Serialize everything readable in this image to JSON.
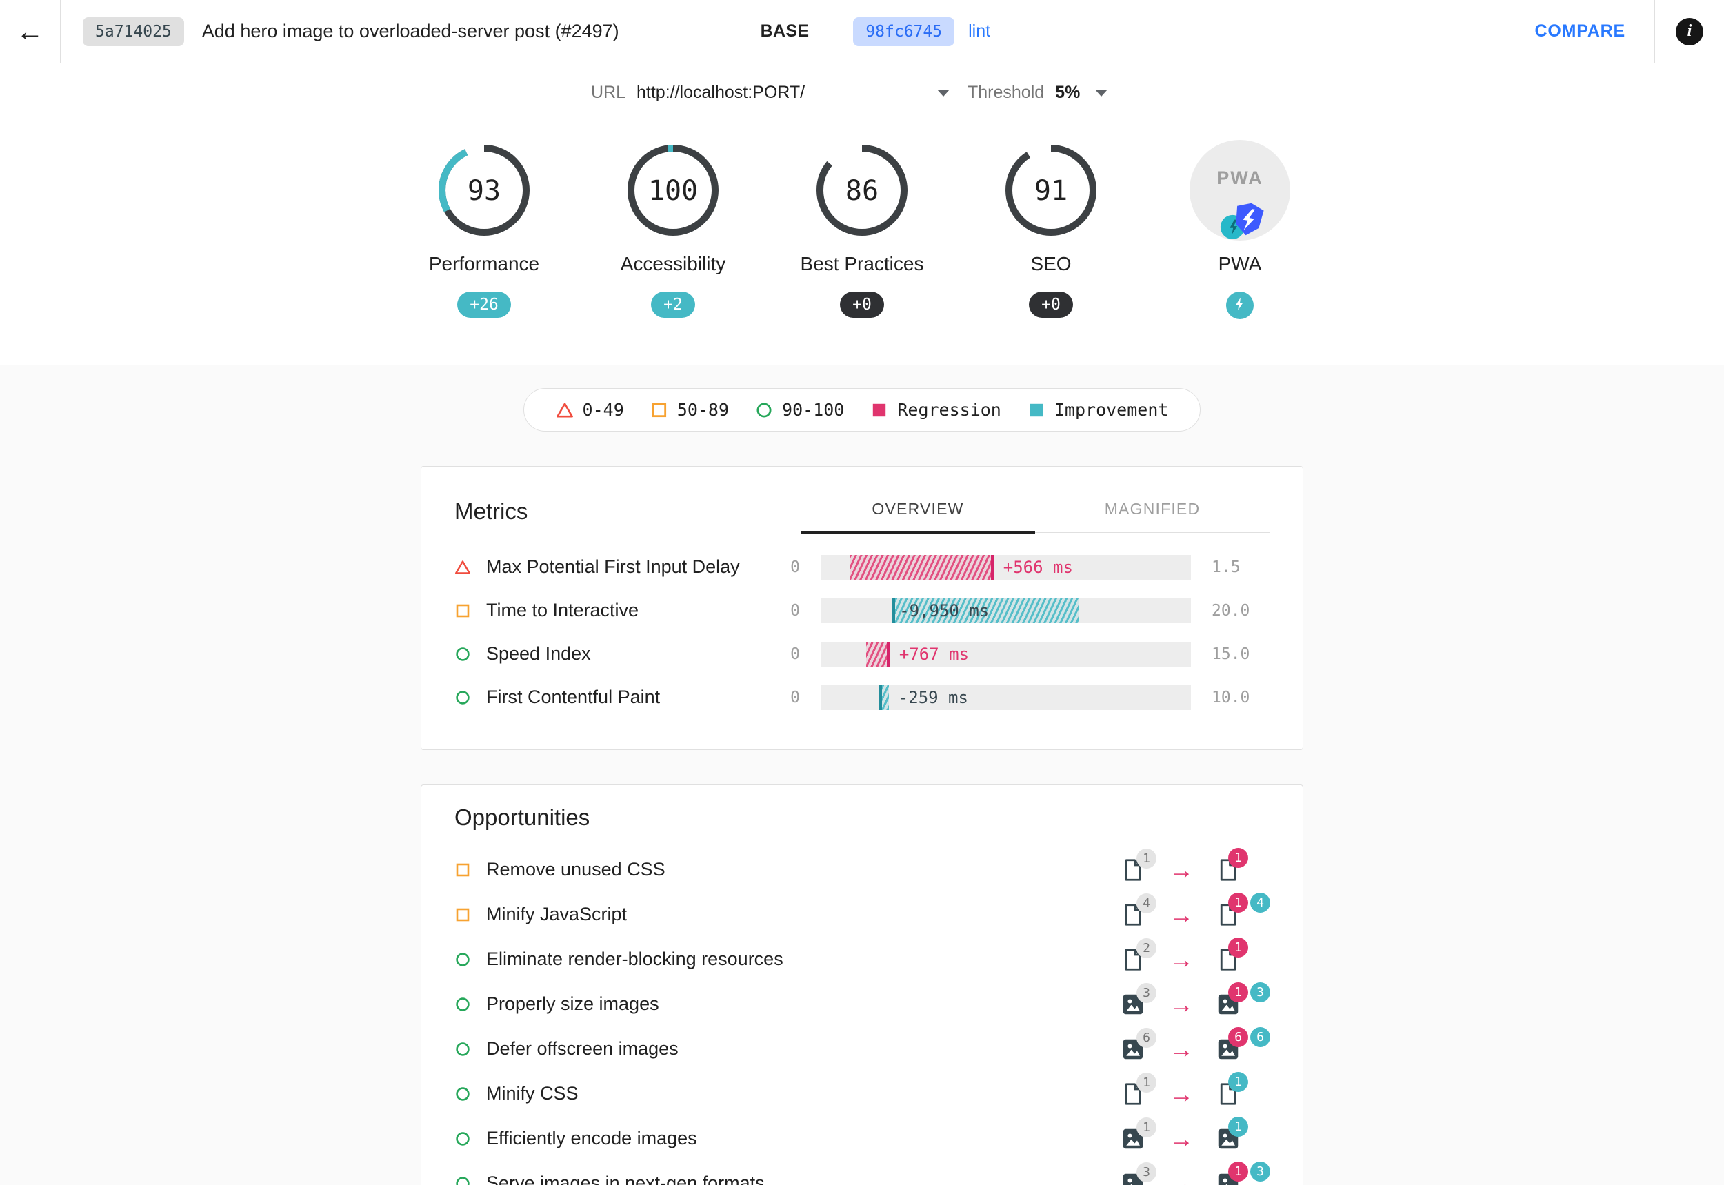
{
  "colors": {
    "teal": "#45b9c5",
    "pink": "#e0356e",
    "orange": "#f7a231",
    "green": "#26a75a",
    "red": "#f04c3e",
    "blue": "#2979ff",
    "ring_dark": "#3c4043"
  },
  "header": {
    "base_hash": "5a714025",
    "title": "Add hero image to overloaded-server post (#2497)",
    "base_label": "BASE",
    "compare_hash": "98fc6745",
    "compare_branch": "lint",
    "compare_label": "COMPARE",
    "back_arrow": "←",
    "info_glyph": "i"
  },
  "controls": {
    "url_label": "URL",
    "url_value": "http://localhost:PORT/",
    "threshold_label": "Threshold",
    "threshold_value": "5%"
  },
  "gauges": [
    {
      "name": "Performance",
      "score": 93,
      "delta": 26,
      "badge": "+26",
      "badge_type": "improvement"
    },
    {
      "name": "Accessibility",
      "score": 100,
      "delta": 2,
      "badge": "+2",
      "badge_type": "improvement"
    },
    {
      "name": "Best Practices",
      "score": 86,
      "delta": 0,
      "badge": "+0",
      "badge_type": "neutral"
    },
    {
      "name": "SEO",
      "score": 91,
      "delta": 0,
      "badge": "+0",
      "badge_type": "neutral"
    },
    {
      "name": "PWA",
      "type": "pwa"
    }
  ],
  "legend": [
    {
      "icon": "triangle",
      "label": "0-49"
    },
    {
      "icon": "square-orange",
      "label": "50-89"
    },
    {
      "icon": "circle-green",
      "label": "90-100"
    },
    {
      "icon": "square-pink",
      "label": "Regression"
    },
    {
      "icon": "square-teal",
      "label": "Improvement"
    }
  ],
  "metrics": {
    "title": "Metrics",
    "tabs": [
      {
        "label": "OVERVIEW",
        "active": true
      },
      {
        "label": "MAGNIFIED",
        "active": false
      }
    ],
    "rows": [
      {
        "icon": "triangle",
        "label": "Max Potential First Input Delay",
        "min": "0",
        "max": "1.5",
        "seg_start_pct": 7.8,
        "seg_width_pct": 38.9,
        "delta_label": "+566 ms",
        "direction": "regression",
        "label_inside": false
      },
      {
        "icon": "square-orange",
        "label": "Time to Interactive",
        "min": "0",
        "max": "20.0",
        "seg_start_pct": 19.4,
        "seg_width_pct": 50.3,
        "delta_label": "-9,950 ms",
        "direction": "improvement",
        "label_inside": true
      },
      {
        "icon": "circle-green",
        "label": "Speed Index",
        "min": "0",
        "max": "15.0",
        "seg_start_pct": 12.3,
        "seg_width_pct": 6.3,
        "delta_label": "+767 ms",
        "direction": "regression",
        "label_inside": false
      },
      {
        "icon": "circle-green",
        "label": "First Contentful Paint",
        "min": "0",
        "max": "10.0",
        "seg_start_pct": 15.8,
        "seg_width_pct": 2.6,
        "delta_label": "-259 ms",
        "direction": "improvement",
        "label_inside": false
      }
    ]
  },
  "opportunities": {
    "title": "Opportunities",
    "rows": [
      {
        "icon": "square-orange",
        "label": "Remove unused CSS",
        "file_icon": "doc",
        "base_count": "1",
        "badges": [
          {
            "value": "1",
            "type": "regression"
          }
        ]
      },
      {
        "icon": "square-orange",
        "label": "Minify JavaScript",
        "file_icon": "doc",
        "base_count": "4",
        "badges": [
          {
            "value": "1",
            "type": "regression"
          },
          {
            "value": "4",
            "type": "improvement"
          }
        ]
      },
      {
        "icon": "circle-green",
        "label": "Eliminate render-blocking resources",
        "file_icon": "doc",
        "base_count": "2",
        "badges": [
          {
            "value": "1",
            "type": "regression"
          }
        ]
      },
      {
        "icon": "circle-green",
        "label": "Properly size images",
        "file_icon": "image",
        "base_count": "3",
        "badges": [
          {
            "value": "1",
            "type": "regression"
          },
          {
            "value": "3",
            "type": "improvement"
          }
        ]
      },
      {
        "icon": "circle-green",
        "label": "Defer offscreen images",
        "file_icon": "image",
        "base_count": "6",
        "badges": [
          {
            "value": "6",
            "type": "regression"
          },
          {
            "value": "6",
            "type": "improvement"
          }
        ]
      },
      {
        "icon": "circle-green",
        "label": "Minify CSS",
        "file_icon": "doc",
        "base_count": "1",
        "badges": [
          {
            "value": "1",
            "type": "improvement"
          }
        ]
      },
      {
        "icon": "circle-green",
        "label": "Efficiently encode images",
        "file_icon": "image",
        "base_count": "1",
        "badges": [
          {
            "value": "1",
            "type": "improvement"
          }
        ]
      },
      {
        "icon": "circle-green",
        "label": "Serve images in next-gen formats",
        "file_icon": "image",
        "base_count": "3",
        "badges": [
          {
            "value": "1",
            "type": "regression"
          },
          {
            "value": "3",
            "type": "improvement"
          }
        ]
      }
    ]
  }
}
